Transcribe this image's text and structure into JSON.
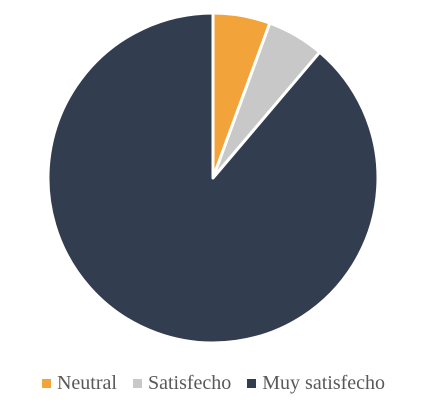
{
  "chart_data": {
    "type": "pie",
    "title": "",
    "series": [
      {
        "name": "",
        "values": [
          5.6,
          5.6,
          88.8
        ]
      }
    ],
    "categories": [
      "Neutral",
      "Satisfecho",
      "Muy satisfecho"
    ],
    "colors": [
      "#F2A33A",
      "#C8C8C8",
      "#323D4F"
    ],
    "legend_position": "bottom"
  }
}
